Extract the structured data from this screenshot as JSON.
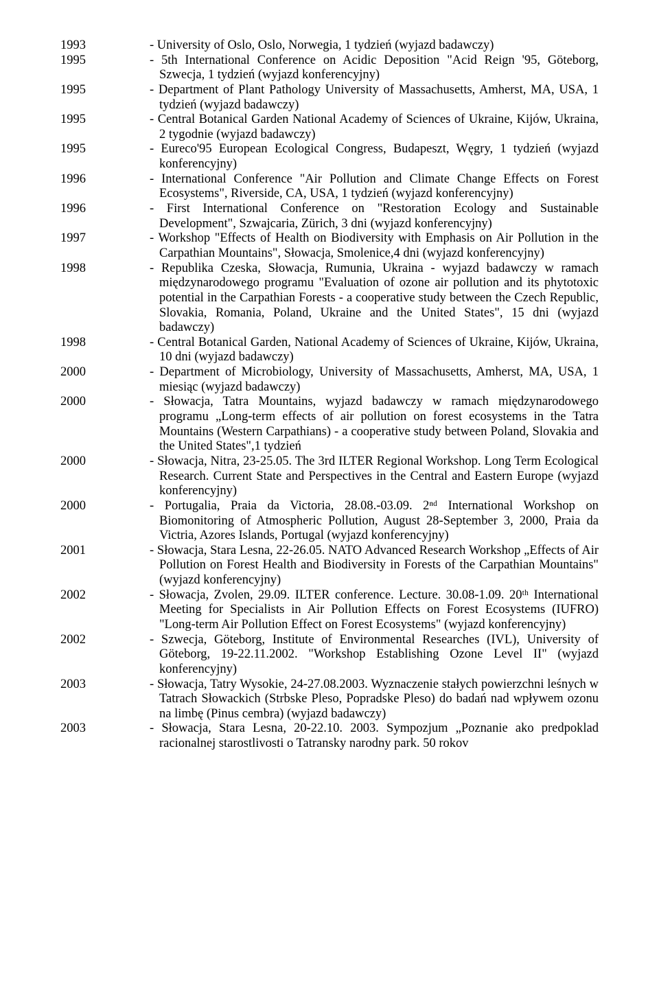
{
  "entries": [
    {
      "year": "1993",
      "desc": "- University of Oslo, Oslo, Norwegia, 1 tydzień (wyjazd badawczy)"
    },
    {
      "year": "1995",
      "desc": "- 5th International Conference on Acidic Deposition \"Acid Reign '95, Göteborg, Szwecja, 1 tydzień (wyjazd konferencyjny)"
    },
    {
      "year": "1995",
      "desc": "- Department of Plant Pathology University of Massachusetts, Amherst, MA, USA, 1 tydzień (wyjazd badawczy)"
    },
    {
      "year": "1995",
      "desc": "- Central Botanical Garden National Academy of Sciences of Ukraine, Kijów, Ukraina, 2 tygodnie (wyjazd badawczy)"
    },
    {
      "year": "1995",
      "desc": "- Eureco'95 European Ecological Congress, Budapeszt, Węgry, 1 tydzień (wyjazd konferencyjny)"
    },
    {
      "year": "1996",
      "desc": "- International Conference \"Air Pollution and Climate Change Effects on Forest Ecosystems\", Riverside, CA, USA, 1 tydzień (wyjazd konferencyjny)"
    },
    {
      "year": "1996",
      "desc": "- First International Conference on \"Restoration Ecology and Sustainable Development\", Szwajcaria, Zürich, 3 dni (wyjazd konferencyjny)"
    },
    {
      "year": "1997",
      "desc": "- Workshop \"Effects of Health on Biodiversity with Emphasis on Air Pollution in the Carpathian Mountains\", Słowacja, Smolenice,4 dni (wyjazd konferencyjny)"
    },
    {
      "year": "1998",
      "desc": "- Republika Czeska, Słowacja, Rumunia, Ukraina - wyjazd badawczy w ramach międzynarodowego programu \"Evaluation of ozone air pollution and its phytotoxic potential in the Carpathian Forests - a cooperative study between the Czech Republic, Slovakia, Romania, Poland, Ukraine and the United States\", 15 dni (wyjazd badawczy)"
    },
    {
      "year": "1998",
      "desc": "- Central Botanical Garden, National Academy of Sciences of Ukraine, Kijów, Ukraina, 10 dni (wyjazd badawczy)"
    },
    {
      "year": "2000",
      "desc": "- Department of Microbiology, University of Massachusetts, Amherst, MA, USA, 1 miesiąc (wyjazd badawczy)"
    },
    {
      "year": "2000",
      "desc": "- Słowacja, Tatra Mountains, wyjazd badawczy w ramach międzynarodowego programu „Long-term effects of air pollution on forest ecosystems in the Tatra Mountains (Western Carpathians) - a cooperative study between Poland, Slovakia and the United States\",1 tydzień"
    },
    {
      "year": "2000",
      "desc": "- Słowacja, Nitra, 23-25.05. The 3rd ILTER Regional Workshop. Long Term Ecological Research. Current State and Perspectives in the Central and Eastern Europe (wyjazd konferencyjny)"
    },
    {
      "year": "2000",
      "desc": "- Portugalia, Praia da Victoria, 28.08.-03.09. 2ⁿᵈ International Workshop on Biomonitoring of Atmospheric Pollution, August 28-September 3, 2000, Praia da Victria, Azores Islands, Portugal (wyjazd konferencyjny)"
    },
    {
      "year": "2001",
      "desc": "- Słowacja, Stara Lesna, 22-26.05. NATO Advanced Research Workshop „Effects of Air Pollution on Forest Health and Biodiversity in Forests of the Carpathian Mountains\" (wyjazd konferencyjny)"
    },
    {
      "year": "2002",
      "desc": "- Słowacja, Zvolen, 29.09. ILTER conference. Lecture. 30.08-1.09. 20ᵗʰ International Meeting for Specialists in Air Pollution Effects on Forest Ecosystems (IUFRO) \"Long-term Air Pollution Effect on Forest Ecosystems\" (wyjazd konferencyjny)"
    },
    {
      "year": "2002",
      "desc": "- Szwecja, Göteborg, Institute of Environmental Researches (IVL), University of Göteborg, 19-22.11.2002. \"Workshop Establishing Ozone Level II\" (wyjazd konferencyjny)"
    },
    {
      "year": "2003",
      "desc": "- Słowacja, Tatry Wysokie, 24-27.08.2003. Wyznaczenie stałych powierzchni leśnych w Tatrach Słowackich (Strbske Pleso, Popradske Pleso) do badań nad wpływem ozonu na limbę (Pinus cembra) (wyjazd badawczy)"
    },
    {
      "year": "2003",
      "desc": "- Słowacja, Stara Lesna, 20-22.10. 2003. Sympozjum „Poznanie ako predpoklad racionalnej starostlivosti o Tatransky narodny park. 50 rokov"
    }
  ]
}
